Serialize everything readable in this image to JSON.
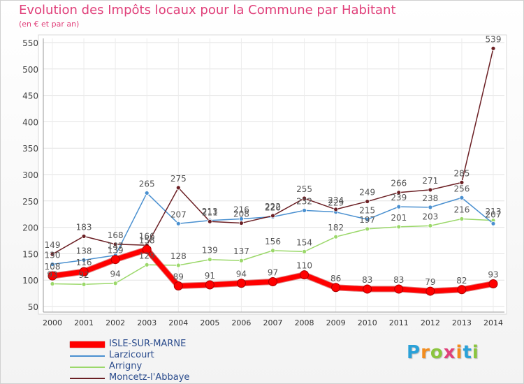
{
  "page": {
    "title": "Evolution des Impôts locaux pour la Commune par Habitant",
    "subtitle": "(en € et par an)",
    "brand": {
      "letters": [
        "P",
        "r",
        "o",
        "x",
        "i",
        "t",
        "i"
      ],
      "colors": [
        "#2aa1d8",
        "#f28c1e",
        "#8bc53f",
        "#e0407a",
        "#f28c1e",
        "#2aa1d8",
        "#8bc53f"
      ]
    }
  },
  "chart_data": {
    "type": "line",
    "title": "Evolution des Impôts locaux pour la Commune par Habitant",
    "subtitle": "(en € et par an)",
    "xlabel": "",
    "ylabel": "",
    "x": [
      "2000",
      "2001",
      "2002",
      "2003",
      "2004",
      "2005",
      "2006",
      "2007",
      "2008",
      "2009",
      "2010",
      "2011",
      "2012",
      "2013",
      "2014"
    ],
    "ylim": [
      50,
      550
    ],
    "yticks": [
      50,
      100,
      150,
      200,
      250,
      300,
      350,
      400,
      450,
      500,
      550
    ],
    "grid": true,
    "legend_position": "bottom-left",
    "series": [
      {
        "name": "ISLE-SUR-MARNE",
        "color": "#ff0000",
        "thick": true,
        "values": [
          108,
          116,
          139,
          158,
          89,
          91,
          94,
          97,
          110,
          86,
          83,
          83,
          79,
          82,
          93
        ],
        "labels": [
          "108",
          "116",
          "139",
          "158",
          "89",
          "91",
          "94",
          "97",
          "110",
          "86",
          "83",
          "83",
          "79",
          "82",
          "93"
        ]
      },
      {
        "name": "Larzicourt",
        "color": "#4a90d0",
        "thick": false,
        "values": [
          130,
          138,
          147,
          265,
          207,
          213,
          216,
          220,
          232,
          229,
          215,
          239,
          238,
          256,
          207
        ],
        "labels": [
          "130",
          "138",
          "147",
          "265",
          "207",
          "213",
          "216",
          "220",
          "232",
          "229",
          "215",
          "239",
          "238",
          "256",
          "207"
        ]
      },
      {
        "name": "Arrigny",
        "color": "#9bd86a",
        "thick": false,
        "values": [
          93,
          92,
          94,
          129,
          128,
          139,
          137,
          156,
          154,
          182,
          197,
          201,
          203,
          216,
          213
        ],
        "labels": [
          "93",
          "92",
          "94",
          "129",
          "128",
          "139",
          "137",
          "156",
          "154",
          "182",
          "197",
          "201",
          "203",
          "216",
          "213"
        ]
      },
      {
        "name": "Moncetz-l'Abbaye",
        "color": "#6b1f24",
        "thick": false,
        "values": [
          149,
          183,
          168,
          166,
          275,
          211,
          208,
          222,
          255,
          234,
          249,
          266,
          271,
          285,
          539
        ],
        "labels": [
          "149",
          "183",
          "168",
          "166",
          "275",
          "211",
          "208",
          "222",
          "255",
          "234",
          "249",
          "266",
          "271",
          "285",
          "539"
        ]
      }
    ]
  }
}
